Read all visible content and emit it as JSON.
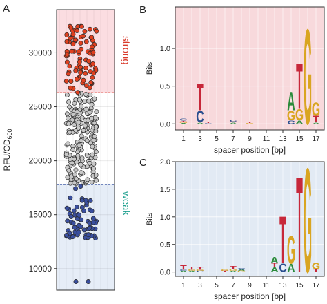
{
  "panels": {
    "a": {
      "letter": "A"
    },
    "b": {
      "letter": "B"
    },
    "c": {
      "letter": "C"
    }
  },
  "colors": {
    "strong_bg": "#fbdde1",
    "weak_bg": "#e6edf7",
    "strong_line": "#d93a2b",
    "weak_line": "#2c4a9a",
    "strong_dot": "#e0401f",
    "mid_dot": "#c8c8c8",
    "weak_dot": "#3a4f9f",
    "logo_bg_b": "#f8d9dc",
    "logo_bg_c": "#e2eaf4",
    "base_A": "#2a8a3a",
    "base_C": "#2a4f8f",
    "base_G": "#d9a521",
    "base_T": "#c7283a"
  },
  "chart_data": [
    {
      "id": "A",
      "type": "scatter",
      "title": "",
      "xlabel": "",
      "ylabel": "RFU/OD600",
      "ylim": [
        8000,
        34000
      ],
      "yticks": [
        10000,
        15000,
        20000,
        25000,
        30000
      ],
      "grid": true,
      "thresholds": {
        "strong": 26300,
        "weak": 17800
      },
      "annotations": {
        "strong": "strong",
        "weak": "weak"
      },
      "groups": {
        "strong": {
          "count": 85,
          "range": [
            26300,
            32700
          ]
        },
        "intermediate": {
          "count": 200,
          "range": [
            17800,
            26300
          ]
        },
        "weak": {
          "count": 72,
          "range": [
            12800,
            17800
          ]
        },
        "outliers_y": [
          8800,
          8800
        ]
      }
    },
    {
      "id": "B",
      "type": "sequence-logo",
      "title": "",
      "xlabel": "spacer position [bp]",
      "ylabel": "Bits",
      "ylim": [
        -0.08,
        1.55
      ],
      "yticks": [
        0.0,
        0.5,
        1.0
      ],
      "x_range": [
        0,
        18
      ],
      "xticks": [
        1,
        3,
        5,
        7,
        9,
        11,
        13,
        15,
        17
      ],
      "positions": [
        {
          "pos": 1,
          "stack": [
            [
              "A",
              0.012
            ],
            [
              "G",
              0.01
            ],
            [
              "T",
              0.02
            ],
            [
              "C",
              0.03
            ]
          ]
        },
        {
          "pos": 3,
          "stack": [
            [
              "A",
              0.02
            ],
            [
              "C",
              0.16
            ],
            [
              "T",
              0.36
            ]
          ]
        },
        {
          "pos": 4,
          "stack": [
            [
              "C",
              0.012
            ],
            [
              "T",
              0.01
            ]
          ]
        },
        {
          "pos": 7,
          "stack": [
            [
              "A",
              0.02
            ],
            [
              "T",
              0.012
            ],
            [
              "C",
              0.025
            ]
          ]
        },
        {
          "pos": 9,
          "stack": [
            [
              "G",
              0.012
            ],
            [
              "T",
              0.012
            ]
          ]
        },
        {
          "pos": 14,
          "stack": [
            [
              "C",
              0.05
            ],
            [
              "G",
              0.13
            ],
            [
              "A",
              0.25
            ]
          ]
        },
        {
          "pos": 15,
          "stack": [
            [
              "A",
              0.05
            ],
            [
              "G",
              0.15
            ],
            [
              "T",
              0.62
            ]
          ]
        },
        {
          "pos": 16,
          "stack": [
            [
              "G",
              1.3
            ]
          ]
        },
        {
          "pos": 17,
          "stack": [
            [
              "A",
              0.02
            ],
            [
              "T",
              0.09
            ],
            [
              "G",
              0.18
            ]
          ]
        }
      ]
    },
    {
      "id": "C",
      "type": "sequence-logo",
      "title": "",
      "xlabel": "spacer position [bp]",
      "ylabel": "Bits",
      "ylim": [
        -0.08,
        2.0
      ],
      "yticks": [
        0.0,
        0.5,
        1.0,
        1.5,
        2.0
      ],
      "x_range": [
        0,
        18
      ],
      "xticks": [
        1,
        3,
        5,
        7,
        9,
        11,
        13,
        15,
        17
      ],
      "positions": [
        {
          "pos": 1,
          "stack": [
            [
              "A",
              0.02
            ],
            [
              "C",
              0.02
            ],
            [
              "T",
              0.08
            ]
          ]
        },
        {
          "pos": 2,
          "stack": [
            [
              "A",
              0.02
            ],
            [
              "G",
              0.02
            ],
            [
              "T",
              0.06
            ]
          ]
        },
        {
          "pos": 3,
          "stack": [
            [
              "C",
              0.02
            ],
            [
              "G",
              0.02
            ],
            [
              "T",
              0.05
            ]
          ]
        },
        {
          "pos": 6,
          "stack": [
            [
              "T",
              0.02
            ],
            [
              "G",
              0.02
            ]
          ]
        },
        {
          "pos": 7,
          "stack": [
            [
              "A",
              0.02
            ],
            [
              "G",
              0.03
            ],
            [
              "T",
              0.06
            ]
          ]
        },
        {
          "pos": 8,
          "stack": [
            [
              "G",
              0.02
            ],
            [
              "A",
              0.02
            ],
            [
              "C",
              0.03
            ]
          ]
        },
        {
          "pos": 12,
          "stack": [
            [
              "A",
              0.08
            ],
            [
              "T",
              0.08
            ],
            [
              "A",
              0.12
            ]
          ]
        },
        {
          "pos": 13,
          "stack": [
            [
              "C",
              0.16
            ],
            [
              "T",
              0.88
            ]
          ]
        },
        {
          "pos": 14,
          "stack": [
            [
              "A",
              0.15
            ],
            [
              "G",
              0.52
            ]
          ]
        },
        {
          "pos": 15,
          "stack": [
            [
              "T",
              1.78
            ]
          ]
        },
        {
          "pos": 16,
          "stack": [
            [
              "G",
              1.95
            ]
          ]
        },
        {
          "pos": 17,
          "stack": [
            [
              "T",
              0.05
            ],
            [
              "G",
              0.12
            ]
          ]
        }
      ]
    }
  ]
}
